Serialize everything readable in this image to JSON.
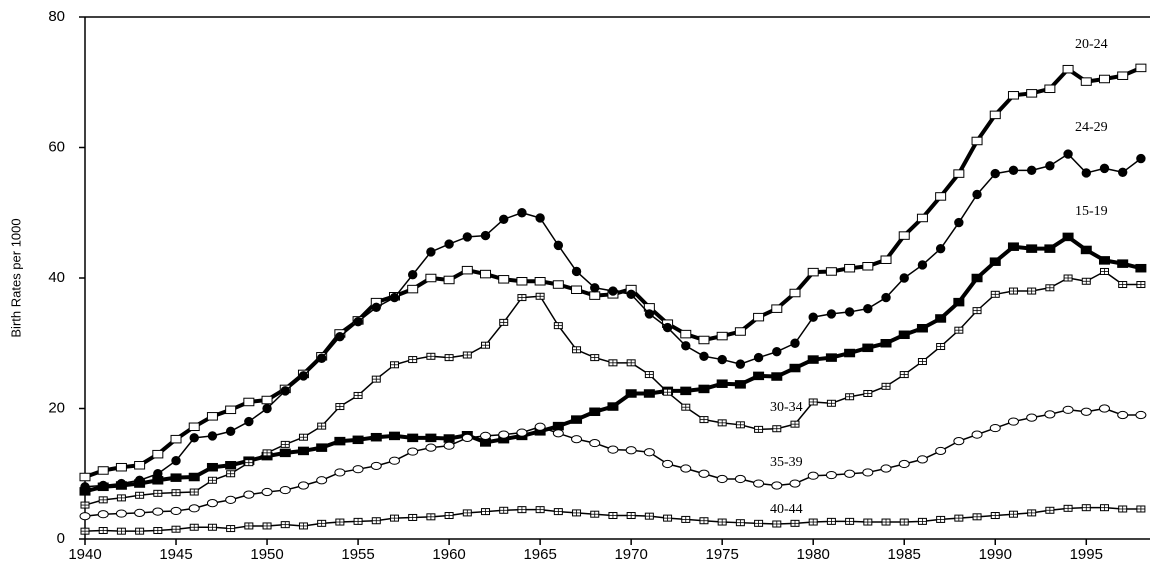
{
  "chart_data": {
    "type": "line",
    "y_label": "Birth Rates per 1000",
    "x": [
      1940,
      1941,
      1942,
      1943,
      1944,
      1945,
      1946,
      1947,
      1948,
      1949,
      1950,
      1951,
      1952,
      1953,
      1954,
      1955,
      1956,
      1957,
      1958,
      1959,
      1960,
      1961,
      1962,
      1963,
      1964,
      1965,
      1966,
      1967,
      1968,
      1969,
      1970,
      1971,
      1972,
      1973,
      1974,
      1975,
      1976,
      1977,
      1978,
      1979,
      1980,
      1981,
      1982,
      1983,
      1984,
      1985,
      1986,
      1987,
      1988,
      1989,
      1990,
      1991,
      1992,
      1993,
      1994,
      1995,
      1996,
      1997,
      1998
    ],
    "xlim": [
      1940,
      1998.5
    ],
    "xticks": [
      1940,
      1945,
      1950,
      1955,
      1960,
      1965,
      1970,
      1975,
      1980,
      1985,
      1990,
      1995
    ],
    "ylim": [
      0,
      80
    ],
    "yticks": [
      0,
      20,
      40,
      60,
      80
    ],
    "series": [
      {
        "name": "20-24",
        "color": "#000000",
        "marker": "square-open",
        "line_style": "thick",
        "values": [
          9.5,
          10.5,
          11,
          11.3,
          13,
          15.3,
          17.2,
          18.8,
          19.8,
          21,
          21.3,
          23,
          25.3,
          28,
          31.5,
          33.5,
          36.3,
          37.2,
          38.3,
          40,
          39.7,
          41.2,
          40.6,
          39.8,
          39.5,
          39.5,
          39,
          38.2,
          37.3,
          37.5,
          38.3,
          35.5,
          33,
          31.4,
          30.5,
          31.1,
          31.8,
          34,
          35.3,
          37.7,
          40.9,
          41,
          41.5,
          41.8,
          42.8,
          46.5,
          49.2,
          52.5,
          56,
          61,
          65,
          68,
          68.3,
          69,
          72,
          70.1,
          70.5,
          71,
          72.2
        ]
      },
      {
        "name": "24-29",
        "color": "#000000",
        "marker": "circle-filled",
        "line_style": "thin",
        "values": [
          8,
          8.2,
          8.5,
          9,
          10,
          12,
          15.5,
          15.8,
          16.5,
          18,
          20,
          22.7,
          25,
          27.7,
          31,
          33.3,
          35.5,
          37,
          40.5,
          44,
          45.2,
          46.3,
          46.5,
          49,
          50,
          49.2,
          45,
          41,
          38.5,
          38,
          37.5,
          34.5,
          32.4,
          29.6,
          28,
          27.5,
          26.8,
          27.8,
          28.7,
          30,
          34,
          34.5,
          34.8,
          35.3,
          37,
          40,
          42,
          44.5,
          48.5,
          52.8,
          56,
          56.5,
          56.5,
          57.2,
          59,
          56.1,
          56.8,
          56.2,
          58.3
        ]
      },
      {
        "name": "15-19",
        "color": "#000000",
        "marker": "square-filled",
        "line_style": "thick",
        "values": [
          7.3,
          8,
          8.2,
          8.5,
          9,
          9.4,
          9.5,
          11,
          11.3,
          12,
          12.7,
          13.2,
          13.5,
          14,
          15,
          15.2,
          15.6,
          15.8,
          15.5,
          15.5,
          15.4,
          15.9,
          14.8,
          15.3,
          15.8,
          16.5,
          17.3,
          18.3,
          19.5,
          20.3,
          22.3,
          22.3,
          22.7,
          22.7,
          23,
          23.8,
          23.7,
          25,
          24.9,
          26.2,
          27.5,
          27.8,
          28.5,
          29.3,
          30,
          31.3,
          32.3,
          33.8,
          36.3,
          40,
          42.5,
          44.8,
          44.5,
          44.5,
          46.3,
          44.3,
          42.7,
          42.2,
          41.5
        ]
      },
      {
        "name": "30-34",
        "color": "#000000",
        "marker": "square-crossed",
        "line_style": "thin",
        "values": [
          5.2,
          6,
          6.3,
          6.7,
          7,
          7.1,
          7.2,
          9,
          10,
          11.7,
          13.2,
          14.5,
          15.6,
          17.3,
          20.3,
          22,
          24.5,
          26.7,
          27.5,
          28,
          27.8,
          28.2,
          29.7,
          33.2,
          37,
          37.2,
          32.7,
          29,
          27.8,
          27,
          27,
          25.2,
          22.5,
          20.2,
          18.3,
          17.8,
          17.5,
          16.8,
          16.9,
          17.6,
          21,
          20.8,
          21.8,
          22.3,
          23.4,
          25.2,
          27.2,
          29.5,
          32,
          35,
          37.5,
          38,
          38,
          38.5,
          40,
          39.5,
          41,
          39,
          39
        ]
      },
      {
        "name": "35-39",
        "color": "#000000",
        "marker": "ellipse-open",
        "line_style": "thin",
        "values": [
          3.5,
          3.8,
          3.9,
          4,
          4.2,
          4.3,
          4.7,
          5.5,
          6,
          6.8,
          7.2,
          7.5,
          8.2,
          9,
          10.2,
          10.7,
          11.2,
          12,
          13.4,
          14,
          14.3,
          15.5,
          15.8,
          16,
          16.3,
          17.2,
          16.2,
          15.3,
          14.7,
          13.7,
          13.6,
          13.3,
          11.5,
          10.8,
          10,
          9.2,
          9.2,
          8.5,
          8.2,
          8.5,
          9.7,
          9.8,
          10,
          10.2,
          10.8,
          11.5,
          12.2,
          13.5,
          15,
          16,
          17,
          18,
          18.6,
          19.1,
          19.8,
          19.5,
          20,
          19,
          19
        ]
      },
      {
        "name": "40-44",
        "color": "#000000",
        "marker": "square-crossed",
        "line_style": "thin",
        "values": [
          1.2,
          1.3,
          1.2,
          1.2,
          1.3,
          1.5,
          1.8,
          1.8,
          1.6,
          2,
          2,
          2.2,
          2,
          2.4,
          2.6,
          2.7,
          2.8,
          3.2,
          3.3,
          3.4,
          3.6,
          4,
          4.2,
          4.4,
          4.5,
          4.5,
          4.2,
          4,
          3.8,
          3.6,
          3.6,
          3.5,
          3.2,
          3,
          2.8,
          2.6,
          2.5,
          2.4,
          2.3,
          2.4,
          2.6,
          2.7,
          2.7,
          2.6,
          2.6,
          2.6,
          2.7,
          3,
          3.2,
          3.4,
          3.6,
          3.8,
          4,
          4.4,
          4.7,
          4.8,
          4.8,
          4.6,
          4.6
        ]
      }
    ]
  }
}
